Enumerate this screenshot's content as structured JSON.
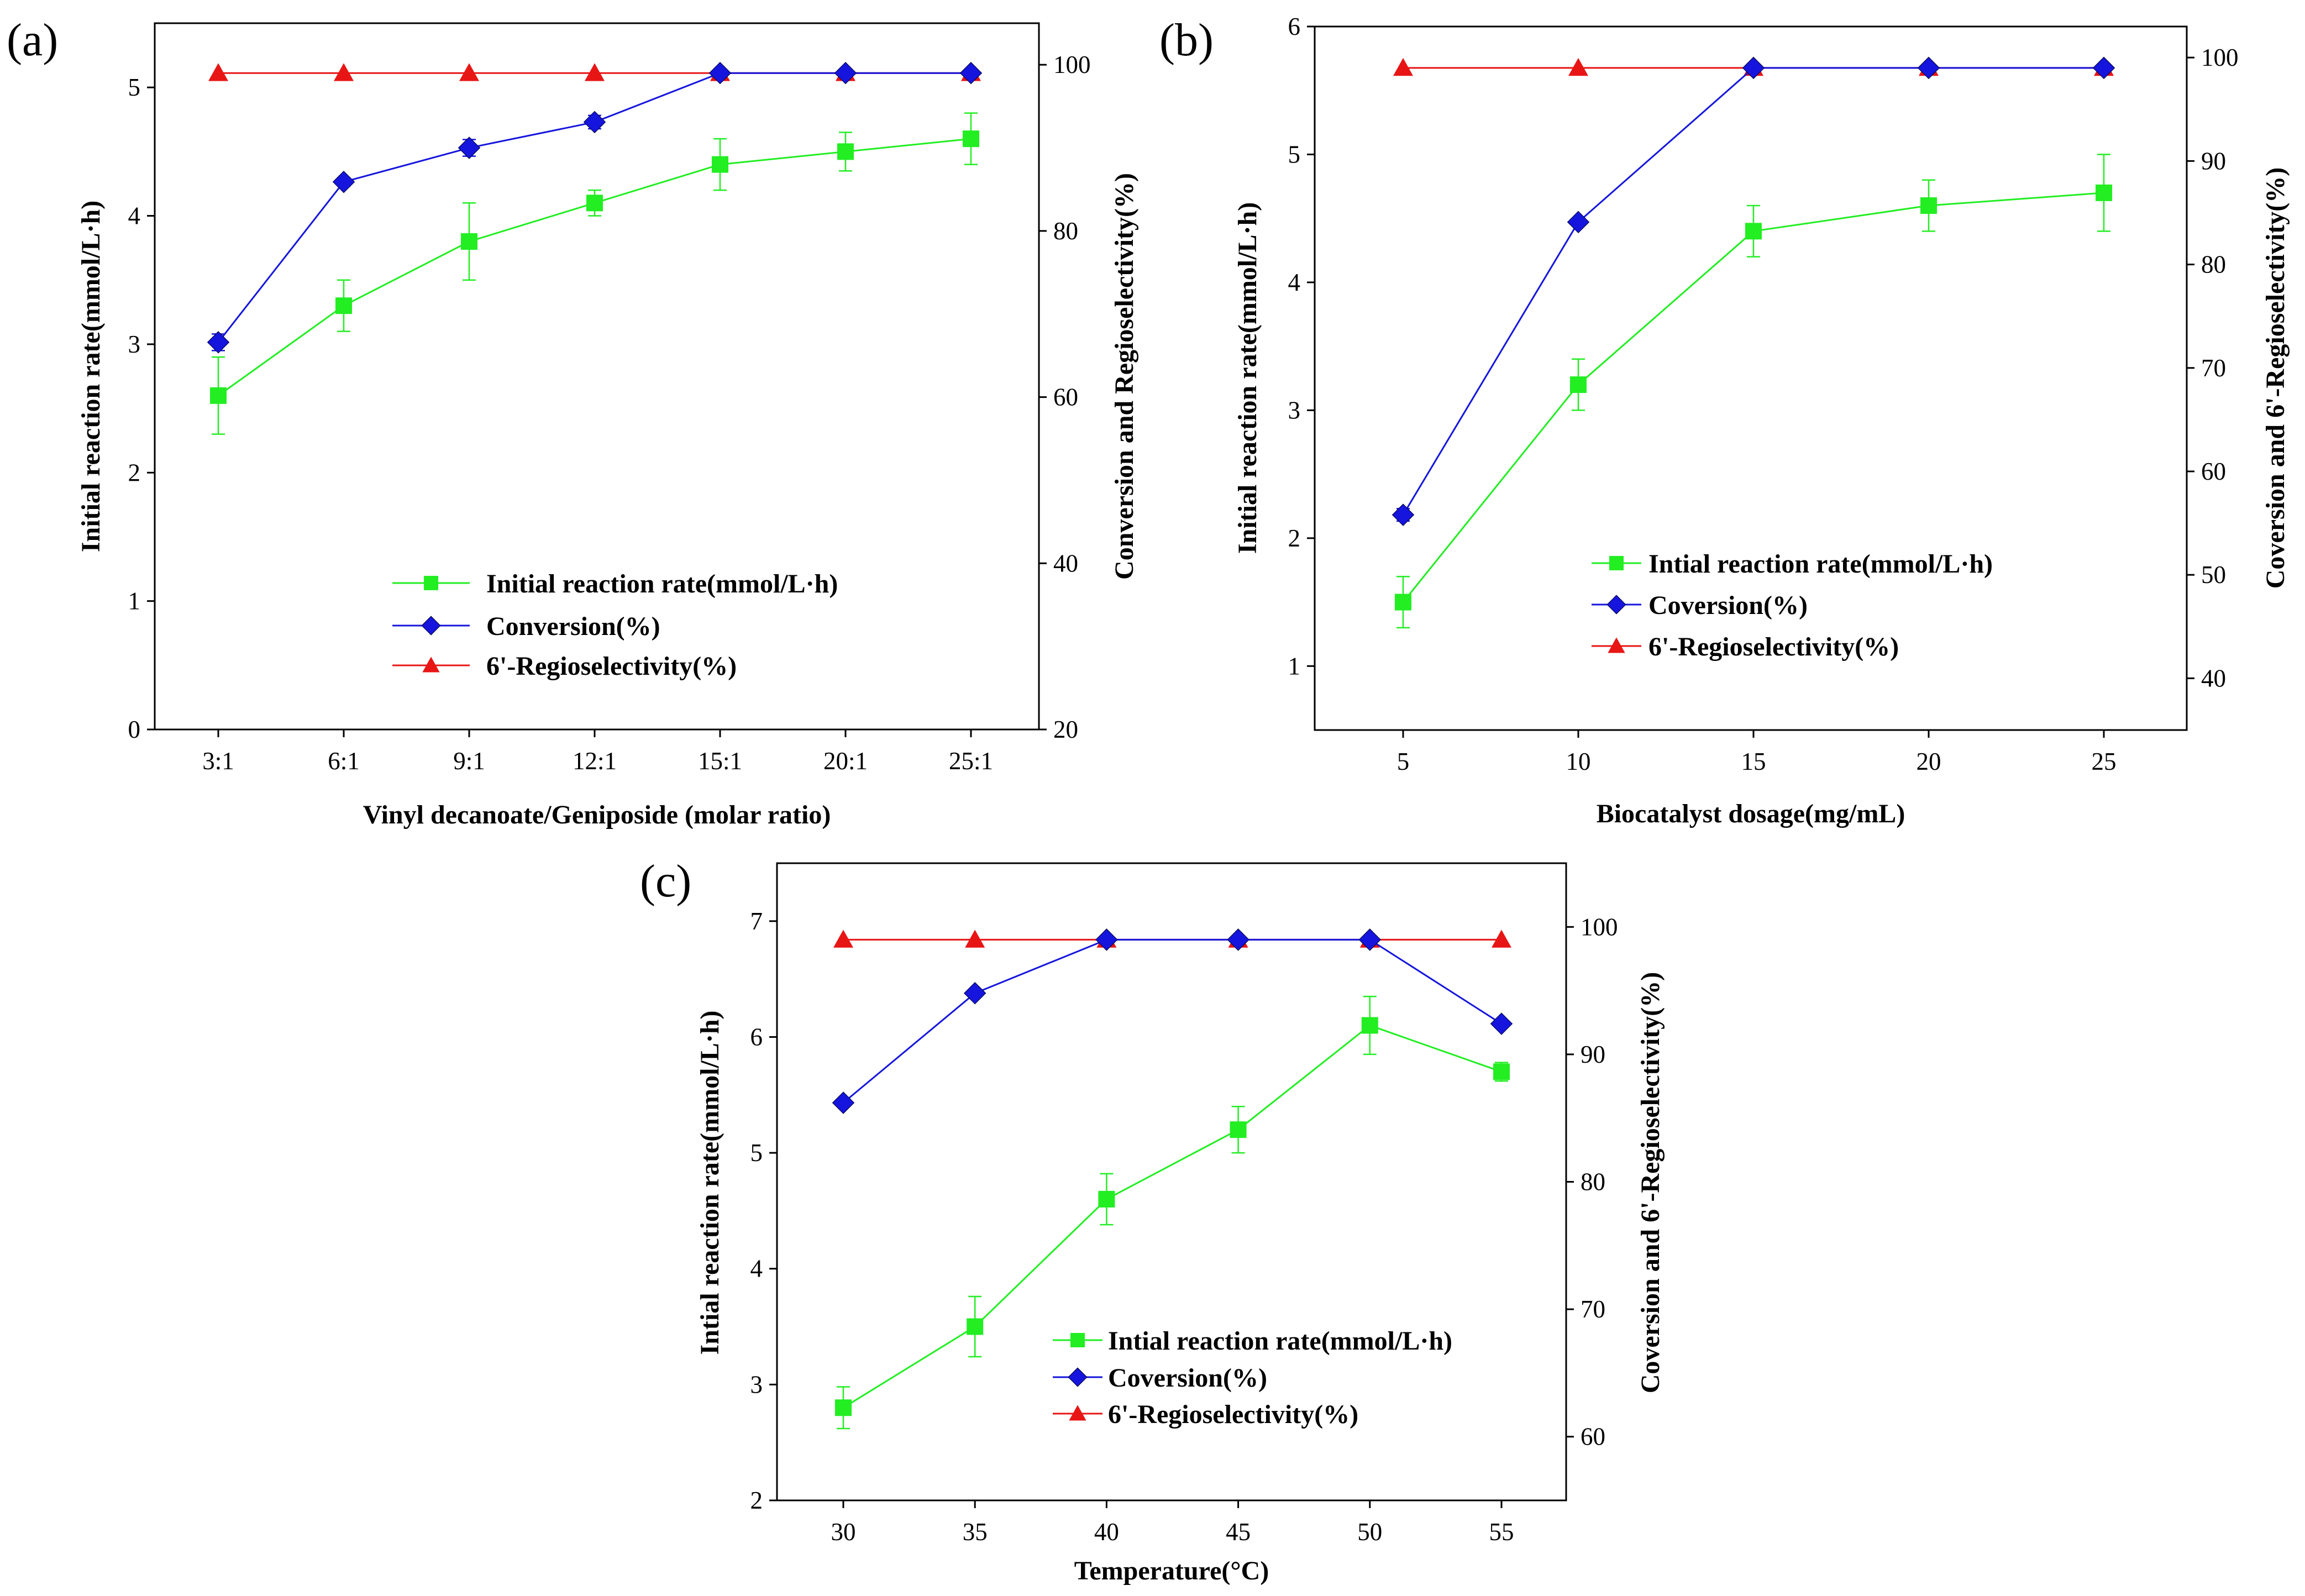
{
  "figure": {
    "colors": {
      "rate": "#22ee22",
      "conversion": "#1515dd",
      "regio": "#e81515"
    }
  },
  "chart_data": [
    {
      "type": "line",
      "panel_label": "(a)",
      "xlabel": "Vinyl decanoate/Geniposide (molar ratio)",
      "ylabel": "Initial reaction rate(mmol/L·h)",
      "y2label": "Conversion and Regioselectivity(%)",
      "categories": [
        "3:1",
        "6:1",
        "9:1",
        "12:1",
        "15:1",
        "20:1",
        "25:1"
      ],
      "ylim": [
        0,
        5.5
      ],
      "yticks": [
        "0",
        "1",
        "2",
        "3",
        "4",
        "5"
      ],
      "y2lim": [
        20,
        105
      ],
      "y2ticks": [
        "20",
        "40",
        "60",
        "80",
        "100"
      ],
      "legend": [
        "Initial reaction rate(mmol/L·h)",
        "Conversion(%)",
        "6'-Regioselectivity(%)"
      ],
      "series": [
        {
          "name": "Initial reaction rate(mmol/L·h)",
          "axis": "left",
          "marker": "square",
          "values": [
            2.6,
            3.3,
            3.8,
            4.1,
            4.4,
            4.5,
            4.6
          ],
          "errors": [
            0.3,
            0.2,
            0.3,
            0.1,
            0.2,
            0.15,
            0.2
          ]
        },
        {
          "name": "Conversion(%)",
          "axis": "right",
          "marker": "diamond",
          "values": [
            66.6,
            85.9,
            90.0,
            93.1,
            99.0,
            99.0,
            99.0
          ],
          "errors": [
            1.0,
            0.5,
            1.0,
            0.8,
            0,
            0,
            0
          ]
        },
        {
          "name": "6'-Regioselectivity(%)",
          "axis": "right",
          "marker": "triangle",
          "values": [
            99.0,
            99.0,
            99.0,
            99.0,
            99.0,
            99.0,
            99.0
          ]
        }
      ]
    },
    {
      "type": "line",
      "panel_label": "(b)",
      "xlabel": "Biocatalyst dosage(mg/mL)",
      "ylabel": "Initial reaction rate(mmol/L·h)",
      "y2label": "Coversion and 6'-Regioselectivity(%)",
      "categories": [
        "5",
        "10",
        "15",
        "20",
        "25"
      ],
      "ylim": [
        0.5,
        6
      ],
      "yticks": [
        "1",
        "2",
        "3",
        "4",
        "5",
        "6"
      ],
      "y2lim": [
        35,
        103
      ],
      "y2ticks": [
        "40",
        "50",
        "60",
        "70",
        "80",
        "90",
        "100"
      ],
      "legend": [
        "Intial reaction rate(mmol/L·h)",
        "Coversion(%)",
        "6'-Regioselectivity(%)"
      ],
      "series": [
        {
          "name": "Intial reaction rate(mmol/L·h)",
          "axis": "left",
          "marker": "square",
          "values": [
            1.5,
            3.2,
            4.4,
            4.6,
            4.7
          ],
          "errors": [
            0.2,
            0.2,
            0.2,
            0.2,
            0.3
          ]
        },
        {
          "name": "Coversion(%)",
          "axis": "right",
          "marker": "diamond",
          "values": [
            55.8,
            84.1,
            99.0,
            99.0,
            99.0
          ],
          "errors": [
            0.6,
            0,
            0,
            0,
            0
          ]
        },
        {
          "name": "6'-Regioselectivity(%)",
          "axis": "right",
          "marker": "triangle",
          "values": [
            99.0,
            99.0,
            99.0,
            99.0,
            99.0
          ]
        }
      ]
    },
    {
      "type": "line",
      "panel_label": "(c)",
      "xlabel": "Temperature(°C)",
      "ylabel": "Intial reaction rate(mmol/L·h)",
      "y2label": "Coversion and 6'-Regioselectivity(%)",
      "categories": [
        "30",
        "35",
        "40",
        "45",
        "50",
        "55"
      ],
      "ylim": [
        2,
        7.5
      ],
      "yticks": [
        "2",
        "3",
        "4",
        "5",
        "6",
        "7"
      ],
      "y2lim": [
        55,
        105
      ],
      "y2ticks": [
        "60",
        "70",
        "80",
        "90",
        "100"
      ],
      "legend": [
        "Intial reaction rate(mmol/L·h)",
        "Coversion(%)",
        "6'-Regioselectivity(%)"
      ],
      "series": [
        {
          "name": "Intial reaction rate(mmol/L·h)",
          "axis": "left",
          "marker": "square",
          "values": [
            2.8,
            3.5,
            4.6,
            5.2,
            6.1,
            5.7
          ],
          "errors": [
            0.18,
            0.26,
            0.22,
            0.2,
            0.25,
            0.08
          ]
        },
        {
          "name": "Coversion(%)",
          "axis": "right",
          "marker": "diamond",
          "values": [
            86.2,
            94.8,
            99.0,
            99.0,
            99.0,
            92.4
          ],
          "errors": [
            0,
            0,
            0,
            0,
            0,
            0
          ]
        },
        {
          "name": "6'-Regioselectivity(%)",
          "axis": "right",
          "marker": "triangle",
          "values": [
            99.0,
            99.0,
            99.0,
            99.0,
            99.0,
            99.0
          ]
        }
      ]
    }
  ]
}
